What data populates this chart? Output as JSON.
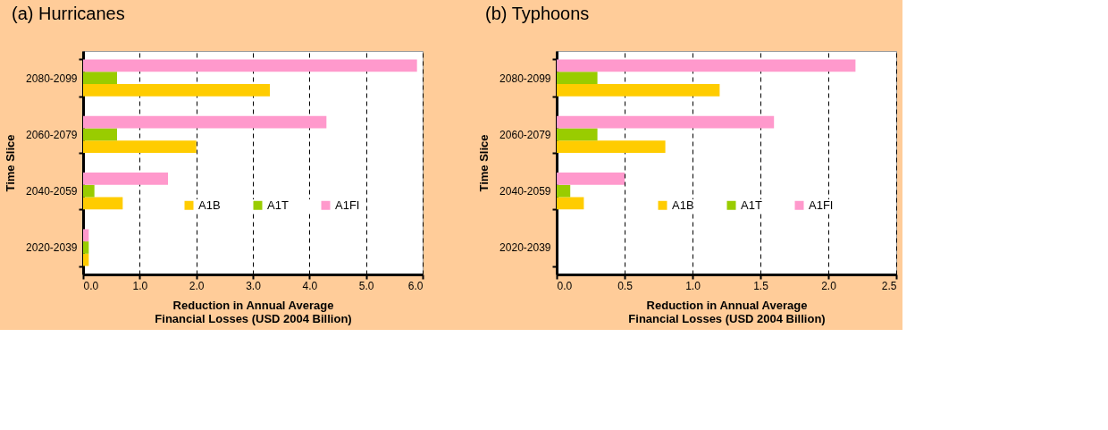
{
  "chart_data": [
    {
      "type": "bar",
      "orientation": "horizontal",
      "title": "(a) Hurricanes",
      "xlabel": "Reduction in Annual Average Financial Losses (USD 2004 Billion)",
      "ylabel": "Time Slice",
      "categories": [
        "2080-2099",
        "2060-2079",
        "2040-2059",
        "2020-2039"
      ],
      "series": [
        {
          "name": "A1B",
          "color": "#ffcc00",
          "values": [
            3.3,
            2.0,
            0.7,
            0.1
          ]
        },
        {
          "name": "A1T",
          "color": "#99cc00",
          "values": [
            0.6,
            0.6,
            0.2,
            0.1
          ]
        },
        {
          "name": "A1FI",
          "color": "#ff99cc",
          "values": [
            5.9,
            4.3,
            1.5,
            0.1
          ]
        }
      ],
      "xlim": [
        0,
        6
      ],
      "xticks": [
        {
          "value": 0,
          "label": "0.0"
        },
        {
          "value": 1,
          "label": "1.0"
        },
        {
          "value": 2,
          "label": "2.0"
        },
        {
          "value": 3,
          "label": "3.0"
        },
        {
          "value": 4,
          "label": "4.0"
        },
        {
          "value": 5,
          "label": "5.0"
        },
        {
          "value": 6,
          "label": "6.0"
        }
      ],
      "grid": "x",
      "legend": "bottom right"
    },
    {
      "type": "bar",
      "orientation": "horizontal",
      "title": "(b) Typhoons",
      "xlabel": "Reduction in Annual Average Financial Losses (USD 2004 Billion)",
      "ylabel": "Time Slice",
      "categories": [
        "2080-2099",
        "2060-2079",
        "2040-2059",
        "2020-2039"
      ],
      "series": [
        {
          "name": "A1B",
          "color": "#ffcc00",
          "values": [
            1.2,
            0.8,
            0.2,
            0
          ]
        },
        {
          "name": "A1T",
          "color": "#99cc00",
          "values": [
            0.3,
            0.3,
            0.1,
            0
          ]
        },
        {
          "name": "A1FI",
          "color": "#ff99cc",
          "values": [
            2.2,
            1.6,
            0.5,
            0
          ]
        }
      ],
      "xlim": [
        0,
        2.5
      ],
      "xticks": [
        {
          "value": 0,
          "label": "0.0"
        },
        0.5,
        {
          "value": 1,
          "label": "1.0"
        },
        1.5,
        {
          "value": 2,
          "label": "2.0"
        },
        2.5
      ],
      "grid": "x",
      "legend": "bottom right"
    }
  ]
}
